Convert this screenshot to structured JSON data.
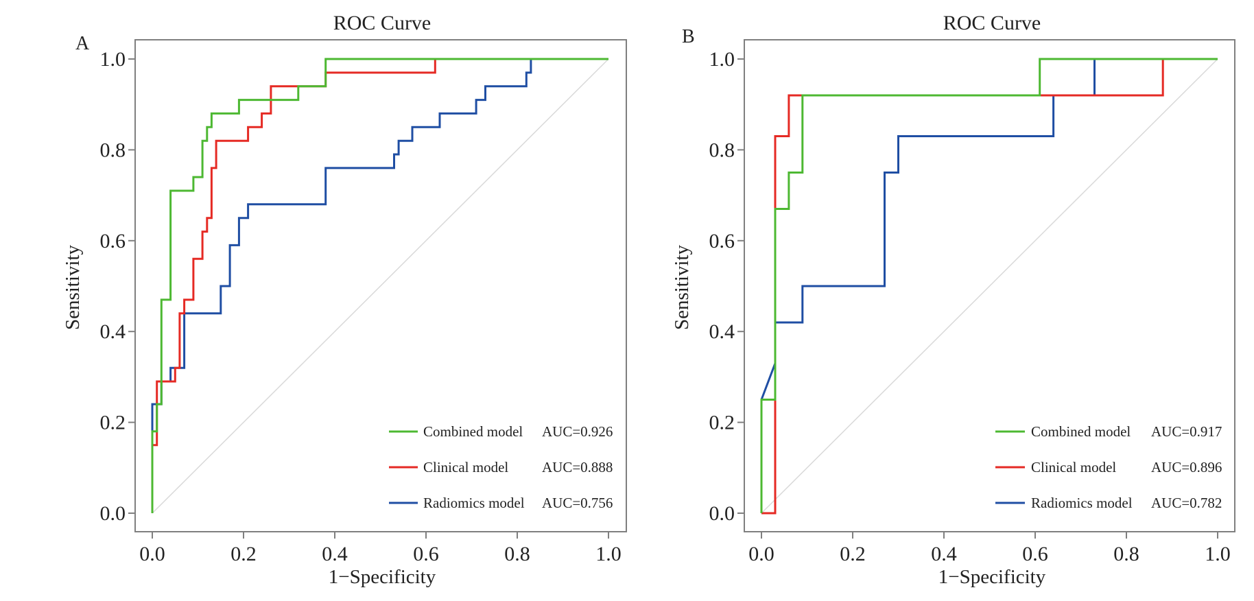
{
  "chart_data": [
    {
      "type": "line",
      "panel": "A",
      "title": "ROC Curve",
      "xlabel": "1−Specificity",
      "ylabel": "Sensitivity",
      "xlim": [
        0,
        1
      ],
      "ylim": [
        0,
        1
      ],
      "xticks": [
        "0.0",
        "0.2",
        "0.4",
        "0.6",
        "0.8",
        "1.0"
      ],
      "yticks": [
        "0.0",
        "0.2",
        "0.4",
        "0.6",
        "0.8",
        "1.0"
      ],
      "grid": false,
      "diagonal": true,
      "legend": "bottom-right",
      "series": [
        {
          "name": "Combined model",
          "auc": "AUC=0.926",
          "color": "#4db832",
          "x": [
            0,
            0,
            0.01,
            0.01,
            0.02,
            0.02,
            0.04,
            0.04,
            0.09,
            0.09,
            0.11,
            0.11,
            0.12,
            0.12,
            0.13,
            0.13,
            0.19,
            0.19,
            0.32,
            0.32,
            0.38,
            0.38,
            1
          ],
          "y": [
            0,
            0.18,
            0.18,
            0.24,
            0.24,
            0.47,
            0.47,
            0.71,
            0.71,
            0.74,
            0.74,
            0.82,
            0.82,
            0.85,
            0.85,
            0.88,
            0.88,
            0.91,
            0.91,
            0.94,
            0.94,
            1,
            1
          ]
        },
        {
          "name": "Clinical model",
          "auc": "AUC=0.888",
          "color": "#e52a24",
          "x": [
            0,
            0,
            0.01,
            0.01,
            0.03,
            0.03,
            0.05,
            0.05,
            0.06,
            0.06,
            0.07,
            0.07,
            0.09,
            0.09,
            0.11,
            0.11,
            0.12,
            0.12,
            0.13,
            0.13,
            0.14,
            0.14,
            0.21,
            0.21,
            0.24,
            0.24,
            0.26,
            0.26,
            0.38,
            0.38,
            0.62,
            0.62,
            1
          ],
          "y": [
            0,
            0.15,
            0.15,
            0.29,
            0.29,
            0.29,
            0.29,
            0.32,
            0.32,
            0.44,
            0.44,
            0.47,
            0.47,
            0.56,
            0.56,
            0.62,
            0.62,
            0.65,
            0.65,
            0.76,
            0.76,
            0.82,
            0.82,
            0.85,
            0.85,
            0.88,
            0.88,
            0.94,
            0.94,
            0.97,
            0.97,
            1,
            1
          ]
        },
        {
          "name": "Radiomics model",
          "auc": "AUC=0.756",
          "color": "#1f4ea3",
          "x": [
            0,
            0,
            0.02,
            0.02,
            0.04,
            0.04,
            0.07,
            0.07,
            0.15,
            0.15,
            0.17,
            0.17,
            0.19,
            0.19,
            0.21,
            0.21,
            0.38,
            0.38,
            0.53,
            0.53,
            0.54,
            0.54,
            0.57,
            0.57,
            0.63,
            0.63,
            0.71,
            0.71,
            0.73,
            0.73,
            0.82,
            0.82,
            0.83,
            0.83,
            1
          ],
          "y": [
            0,
            0.24,
            0.24,
            0.29,
            0.29,
            0.32,
            0.32,
            0.44,
            0.44,
            0.5,
            0.5,
            0.59,
            0.59,
            0.65,
            0.65,
            0.68,
            0.68,
            0.76,
            0.76,
            0.79,
            0.79,
            0.82,
            0.82,
            0.85,
            0.85,
            0.88,
            0.88,
            0.91,
            0.91,
            0.94,
            0.94,
            0.97,
            0.97,
            1,
            1
          ]
        }
      ]
    },
    {
      "type": "line",
      "panel": "B",
      "title": "ROC Curve",
      "xlabel": "1−Specificity",
      "ylabel": "Sensitivity",
      "xlim": [
        0,
        1
      ],
      "ylim": [
        0,
        1
      ],
      "xticks": [
        "0.0",
        "0.2",
        "0.4",
        "0.6",
        "0.8",
        "1.0"
      ],
      "yticks": [
        "0.0",
        "0.2",
        "0.4",
        "0.6",
        "0.8",
        "1.0"
      ],
      "grid": false,
      "diagonal": true,
      "legend": "bottom-right",
      "series": [
        {
          "name": "Combined model",
          "auc": "AUC=0.917",
          "color": "#4db832",
          "x": [
            0,
            0,
            0.03,
            0.03,
            0.06,
            0.06,
            0.09,
            0.09,
            0.61,
            0.61,
            1
          ],
          "y": [
            0,
            0.25,
            0.25,
            0.67,
            0.67,
            0.75,
            0.75,
            0.92,
            0.92,
            1,
            1
          ]
        },
        {
          "name": "Clinical model",
          "auc": "AUC=0.896",
          "color": "#e52a24",
          "x": [
            0,
            0.03,
            0.03,
            0.06,
            0.06,
            0.88,
            0.88,
            1
          ],
          "y": [
            0,
            0,
            0.83,
            0.83,
            0.92,
            0.92,
            1,
            1
          ]
        },
        {
          "name": "Radiomics model",
          "auc": "AUC=0.782",
          "color": "#1f4ea3",
          "x": [
            0,
            0.03,
            0.03,
            0.09,
            0.09,
            0.27,
            0.27,
            0.3,
            0.3,
            0.64,
            0.64,
            0.73,
            0.73,
            1
          ],
          "y": [
            0.25,
            0.33,
            0.42,
            0.42,
            0.5,
            0.5,
            0.75,
            0.75,
            0.83,
            0.83,
            0.92,
            0.92,
            1,
            1
          ]
        }
      ]
    }
  ]
}
